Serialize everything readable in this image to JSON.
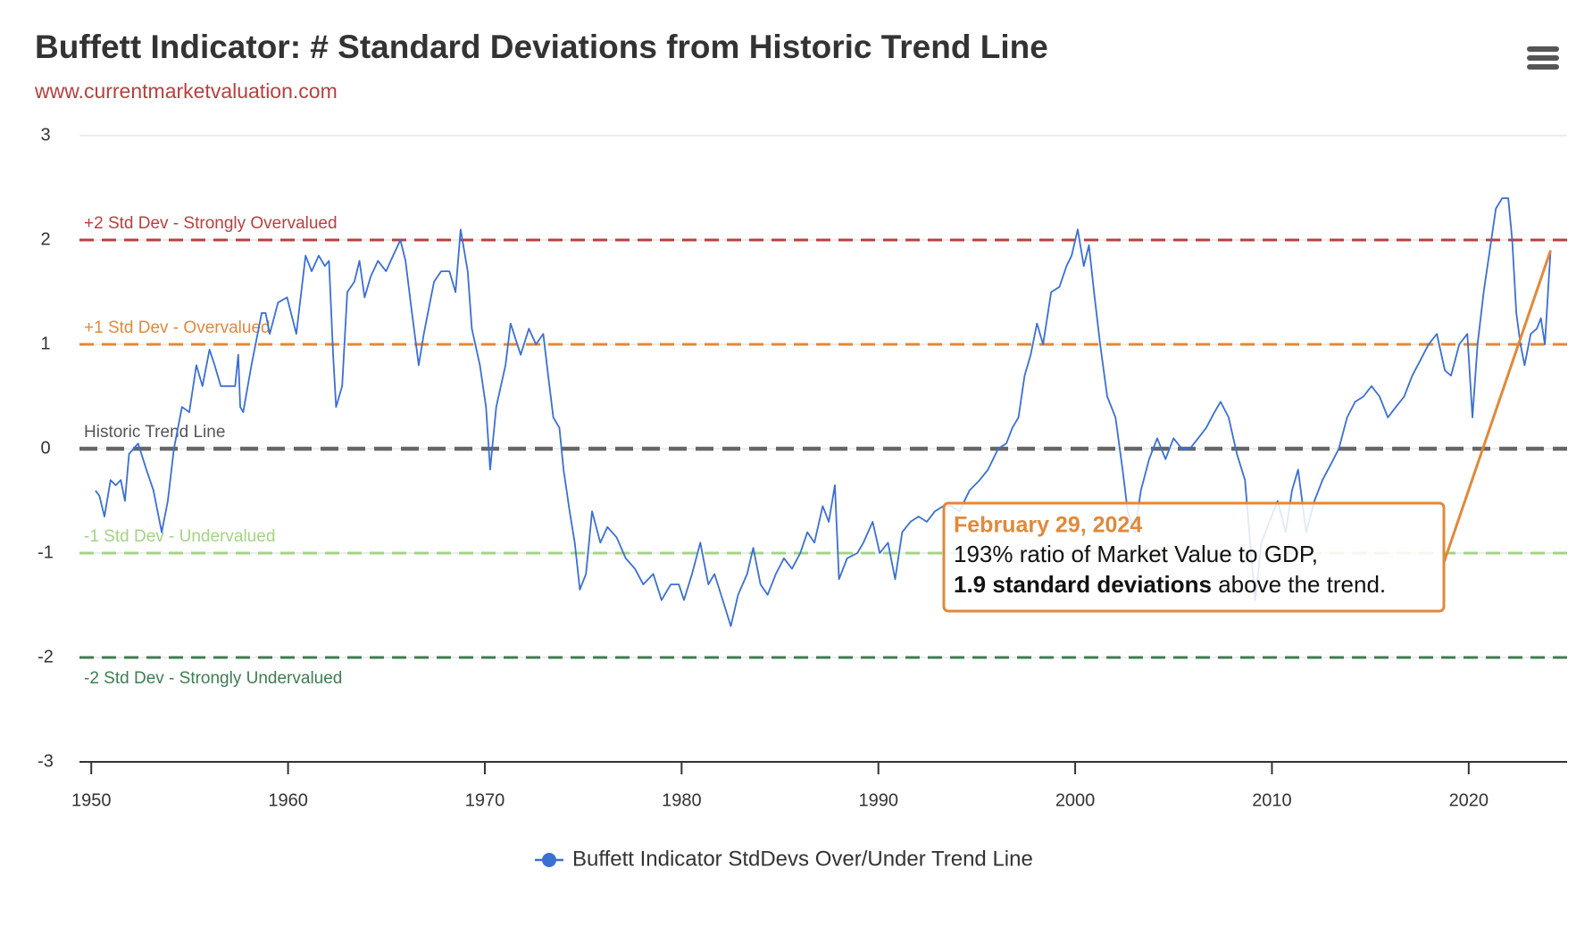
{
  "chart_data": {
    "type": "line",
    "title": "Buffett Indicator: # Standard Deviations from Historic Trend Line",
    "subtitle": "www.currentmarketvaluation.com",
    "xlim": [
      1949.4,
      2025.0
    ],
    "xticks": [
      1950,
      1960,
      1970,
      1980,
      1990,
      2000,
      2010,
      2020
    ],
    "ylim": [
      -3,
      3
    ],
    "yticks": [
      -3,
      -2,
      -1,
      0,
      1,
      2,
      3
    ],
    "grid": true,
    "x": [
      1950.21,
      1950.41,
      1950.67,
      1950.98,
      1951.24,
      1951.5,
      1951.71,
      1951.92,
      1952.38,
      1952.8,
      1953.16,
      1953.58,
      1953.89,
      1954.2,
      1954.61,
      1954.98,
      1955.34,
      1955.65,
      1956.01,
      1956.27,
      1956.58,
      1957.05,
      1957.31,
      1957.47,
      1957.57,
      1957.72,
      1958.14,
      1958.66,
      1958.86,
      1959.07,
      1959.49,
      1959.95,
      1960.42,
      1960.89,
      1961.2,
      1961.56,
      1961.87,
      1962.08,
      1962.29,
      1962.44,
      1962.75,
      1963.01,
      1963.37,
      1963.63,
      1963.89,
      1964.2,
      1964.57,
      1964.98,
      1965.34,
      1965.71,
      1965.97,
      1966.23,
      1966.64,
      1966.9,
      1967.21,
      1967.42,
      1967.78,
      1968.2,
      1968.51,
      1968.77,
      1969.13,
      1969.34,
      1969.75,
      1970.06,
      1970.27,
      1970.58,
      1971.05,
      1971.31,
      1971.82,
      1972.24,
      1972.6,
      1972.97,
      1973.22,
      1973.48,
      1973.79,
      1974.0,
      1974.31,
      1974.57,
      1974.83,
      1975.14,
      1975.45,
      1975.87,
      1976.23,
      1976.7,
      1977.16,
      1977.63,
      1978.05,
      1978.56,
      1978.98,
      1979.45,
      1979.86,
      1980.12,
      1980.53,
      1980.95,
      1981.36,
      1981.67,
      1982.09,
      1982.5,
      1982.87,
      1983.33,
      1983.64,
      1984.01,
      1984.37,
      1984.79,
      1985.2,
      1985.61,
      1986.03,
      1986.39,
      1986.75,
      1987.17,
      1987.48,
      1987.79,
      1988.0,
      1988.41,
      1988.93,
      1989.24,
      1989.71,
      1990.07,
      1990.49,
      1990.85,
      1991.21,
      1991.63,
      1992.04,
      1992.46,
      1992.87,
      1993.29,
      1993.7,
      1994.12,
      1994.63,
      1995.15,
      1995.57,
      1996.09,
      1996.5,
      1996.81,
      1997.12,
      1997.43,
      1997.74,
      1998.06,
      1998.37,
      1998.78,
      1999.2,
      1999.56,
      1999.82,
      2000.13,
      2000.44,
      2000.7,
      2000.96,
      2001.27,
      2001.63,
      2002.05,
      2002.41,
      2002.67,
      2003.03,
      2003.34,
      2003.76,
      2004.17,
      2004.59,
      2005.0,
      2005.42,
      2005.83,
      2006.25,
      2006.66,
      2007.08,
      2007.39,
      2007.8,
      2008.22,
      2008.63,
      2008.94,
      2009.15,
      2009.46,
      2009.87,
      2010.29,
      2010.7,
      2011.02,
      2011.33,
      2011.74,
      2012.16,
      2012.57,
      2012.99,
      2013.4,
      2013.82,
      2014.23,
      2014.65,
      2015.06,
      2015.47,
      2015.89,
      2016.3,
      2016.72,
      2017.13,
      2017.55,
      2017.96,
      2018.38,
      2018.79,
      2019.1,
      2019.52,
      2019.93,
      2020.19,
      2020.45,
      2020.76,
      2021.07,
      2021.38,
      2021.7,
      2022.01,
      2022.21,
      2022.42,
      2022.63,
      2022.84,
      2023.15,
      2023.46,
      2023.67,
      2023.87,
      2024.03,
      2024.16
    ],
    "series": [
      {
        "name": "Buffett Indicator StdDevs Over/Under Trend Line",
        "color": "#3a6fd4",
        "values": [
          -0.4,
          -0.45,
          -0.65,
          -0.3,
          -0.35,
          -0.3,
          -0.5,
          -0.05,
          0.05,
          -0.2,
          -0.4,
          -0.8,
          -0.5,
          0,
          0.4,
          0.35,
          0.8,
          0.6,
          0.95,
          0.8,
          0.6,
          0.6,
          0.6,
          0.9,
          0.4,
          0.35,
          0.8,
          1.3,
          1.3,
          1.1,
          1.4,
          1.45,
          1.1,
          1.85,
          1.7,
          1.85,
          1.75,
          1.8,
          0.9,
          0.4,
          0.6,
          1.5,
          1.6,
          1.8,
          1.45,
          1.65,
          1.8,
          1.7,
          1.85,
          2.0,
          1.8,
          1.4,
          0.8,
          1.1,
          1.4,
          1.6,
          1.7,
          1.7,
          1.5,
          2.1,
          1.7,
          1.15,
          0.8,
          0.4,
          -0.2,
          0.4,
          0.8,
          1.2,
          0.9,
          1.15,
          1.0,
          1.1,
          0.7,
          0.3,
          0.2,
          -0.2,
          -0.6,
          -0.9,
          -1.35,
          -1.2,
          -0.6,
          -0.9,
          -0.75,
          -0.85,
          -1.05,
          -1.15,
          -1.3,
          -1.2,
          -1.45,
          -1.3,
          -1.3,
          -1.45,
          -1.2,
          -0.9,
          -1.3,
          -1.2,
          -1.45,
          -1.7,
          -1.4,
          -1.2,
          -0.95,
          -1.3,
          -1.4,
          -1.2,
          -1.05,
          -1.15,
          -1.0,
          -0.8,
          -0.9,
          -0.55,
          -0.7,
          -0.35,
          -1.25,
          -1.05,
          -1.0,
          -0.9,
          -0.7,
          -1.0,
          -0.9,
          -1.25,
          -0.8,
          -0.7,
          -0.65,
          -0.7,
          -0.6,
          -0.55,
          -0.55,
          -0.6,
          -0.4,
          -0.3,
          -0.2,
          0,
          0.05,
          0.2,
          0.3,
          0.7,
          0.9,
          1.2,
          1.0,
          1.5,
          1.55,
          1.75,
          1.85,
          2.1,
          1.75,
          1.95,
          1.5,
          1.0,
          0.5,
          0.3,
          -0.2,
          -0.6,
          -0.8,
          -0.4,
          -0.1,
          0.1,
          -0.1,
          0.1,
          0,
          0,
          0.1,
          0.2,
          0.35,
          0.45,
          0.3,
          -0.05,
          -0.3,
          -1.0,
          -1.45,
          -0.9,
          -0.7,
          -0.5,
          -0.8,
          -0.4,
          -0.2,
          -0.8,
          -0.5,
          -0.3,
          -0.15,
          0,
          0.3,
          0.45,
          0.5,
          0.6,
          0.5,
          0.3,
          0.4,
          0.5,
          0.7,
          0.85,
          1.0,
          1.1,
          0.75,
          0.7,
          1.0,
          1.1,
          0.3,
          1.0,
          1.5,
          1.9,
          2.3,
          2.4,
          2.4,
          2.0,
          1.3,
          1.0,
          0.8,
          1.1,
          1.15,
          1.25,
          1.0,
          1.5,
          1.9
        ]
      }
    ],
    "reference_lines": [
      {
        "value": 2,
        "label": "+2 Std Dev - Strongly Overvalued",
        "color": "#b8403f",
        "line_width": 3
      },
      {
        "value": 1,
        "label": "+1 Std Dev - Overvalued",
        "color": "#e0893a",
        "line_width": 3
      },
      {
        "value": 0,
        "label": "Historic Trend Line",
        "color": "#666666",
        "line_width": 4.5
      },
      {
        "value": -1,
        "label": "-1 Std Dev - Undervalued",
        "color": "#a3d483",
        "line_width": 3
      },
      {
        "value": -2,
        "label": "-2 Std Dev - Strongly Undervalued",
        "color": "#3e7d52",
        "line_width": 3
      }
    ],
    "annotation": {
      "title": "February 29, 2024",
      "line1": "193% ratio of Market Value to GDP,",
      "line2_bold": "1.9 standard deviations",
      "line2_rest": " above the trend.",
      "color": "#e0893a"
    }
  }
}
